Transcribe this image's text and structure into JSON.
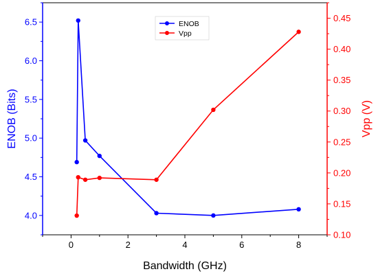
{
  "chart_data": {
    "type": "line",
    "xlabel": "Bandwidth (GHz)",
    "xlim": [
      -1,
      9
    ],
    "xticks": [
      0,
      2,
      4,
      6,
      8
    ],
    "y_left": {
      "label": "ENOB (Bits)",
      "lim": [
        3.75,
        6.75
      ],
      "ticks": [
        4.0,
        4.5,
        5.0,
        5.5,
        6.0,
        6.5
      ],
      "color": "#0000ff"
    },
    "y_right": {
      "label": "Vpp (V)",
      "lim": [
        0.1,
        0.475
      ],
      "ticks": [
        0.1,
        0.15,
        0.2,
        0.25,
        0.3,
        0.35,
        0.4,
        0.45
      ],
      "color": "#ff0000"
    },
    "series": [
      {
        "name": "ENOB",
        "axis": "left",
        "color": "#0000ff",
        "x": [
          0.2,
          0.25,
          0.5,
          1.0,
          3.0,
          5.0,
          8.0
        ],
        "values": [
          4.69,
          6.52,
          4.97,
          4.77,
          4.03,
          4.0,
          4.08
        ]
      },
      {
        "name": "Vpp",
        "axis": "right",
        "color": "#ff0000",
        "x": [
          0.2,
          0.25,
          0.5,
          1.0,
          3.0,
          5.0,
          8.0
        ],
        "values": [
          0.131,
          0.193,
          0.189,
          0.192,
          0.189,
          0.302,
          0.428
        ]
      }
    ],
    "legend": {
      "position": "top-center"
    },
    "grid": false
  }
}
